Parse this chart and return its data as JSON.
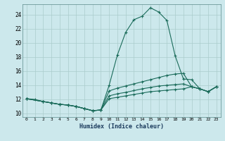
{
  "xlabel": "Humidex (Indice chaleur)",
  "bg_color": "#cce8ec",
  "grid_color": "#aacccc",
  "line_color": "#1a6b5a",
  "xlim": [
    -0.5,
    23.5
  ],
  "ylim": [
    9.5,
    25.5
  ],
  "xticks": [
    0,
    1,
    2,
    3,
    4,
    5,
    6,
    7,
    8,
    9,
    10,
    11,
    12,
    13,
    14,
    15,
    16,
    17,
    18,
    19,
    20,
    21,
    22,
    23
  ],
  "yticks": [
    10,
    12,
    14,
    16,
    18,
    20,
    22,
    24
  ],
  "line1_x": [
    0,
    1,
    2,
    3,
    4,
    5,
    6,
    7,
    8,
    9,
    10,
    11,
    12,
    13,
    14,
    15,
    16,
    17,
    18,
    19,
    20,
    21,
    22,
    23
  ],
  "line1_y": [
    12.1,
    12.0,
    11.7,
    11.5,
    11.3,
    11.2,
    11.0,
    10.7,
    10.4,
    10.5,
    14.0,
    18.3,
    21.5,
    23.3,
    23.8,
    25.0,
    24.4,
    23.2,
    18.2,
    14.9,
    14.8,
    13.5,
    13.1,
    13.8
  ],
  "line2_x": [
    0,
    2,
    3,
    4,
    5,
    6,
    7,
    8,
    9,
    10,
    11,
    12,
    13,
    14,
    15,
    16,
    17,
    18,
    19,
    20,
    21,
    22,
    23
  ],
  "line2_y": [
    12.1,
    11.7,
    11.5,
    11.3,
    11.2,
    11.0,
    10.7,
    10.4,
    10.5,
    13.2,
    13.6,
    13.9,
    14.2,
    14.5,
    14.8,
    15.1,
    15.4,
    15.6,
    15.7,
    13.8,
    13.5,
    13.1,
    13.8
  ],
  "line3_x": [
    0,
    2,
    3,
    4,
    5,
    6,
    7,
    8,
    9,
    10,
    11,
    12,
    13,
    14,
    15,
    16,
    17,
    18,
    19,
    20,
    21,
    22,
    23
  ],
  "line3_y": [
    12.1,
    11.7,
    11.5,
    11.3,
    11.2,
    11.0,
    10.7,
    10.4,
    10.5,
    12.5,
    12.8,
    13.0,
    13.25,
    13.5,
    13.7,
    13.9,
    14.0,
    14.1,
    14.2,
    13.8,
    13.5,
    13.1,
    13.8
  ],
  "line4_x": [
    0,
    2,
    3,
    4,
    5,
    6,
    7,
    8,
    9,
    10,
    11,
    12,
    13,
    14,
    15,
    16,
    17,
    18,
    19,
    20,
    21,
    22,
    23
  ],
  "line4_y": [
    12.1,
    11.7,
    11.5,
    11.3,
    11.2,
    11.0,
    10.7,
    10.4,
    10.5,
    12.1,
    12.3,
    12.5,
    12.7,
    12.9,
    13.1,
    13.2,
    13.3,
    13.4,
    13.5,
    13.8,
    13.5,
    13.1,
    13.8
  ]
}
